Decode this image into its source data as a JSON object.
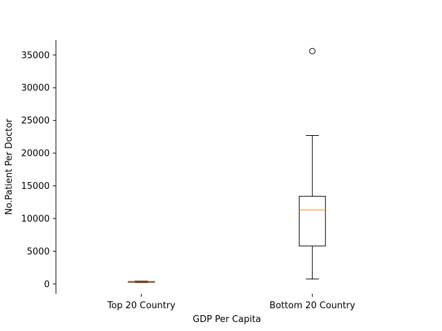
{
  "chart_data": {
    "type": "boxplot",
    "title": "",
    "xlabel": "GDP Per Capita",
    "ylabel": "No.Patient Per Doctor",
    "ylim": [
      -1500,
      37300
    ],
    "yticks": [
      0,
      5000,
      10000,
      15000,
      20000,
      25000,
      30000,
      35000
    ],
    "categories": [
      "Top 20 Country",
      "Bottom 20 Country"
    ],
    "boxes": [
      {
        "category": "Top 20 Country",
        "whisker_low": 210,
        "q1": 260,
        "median": 310,
        "q3": 370,
        "whisker_high": 430,
        "outliers": []
      },
      {
        "category": "Bottom 20 Country",
        "whisker_low": 750,
        "q1": 5800,
        "median": 11300,
        "q3": 13400,
        "whisker_high": 22700,
        "outliers": [
          35600
        ]
      }
    ],
    "colors": {
      "box": "#000000",
      "median": "#ff7f0e"
    },
    "grid": false,
    "legend": "none"
  }
}
